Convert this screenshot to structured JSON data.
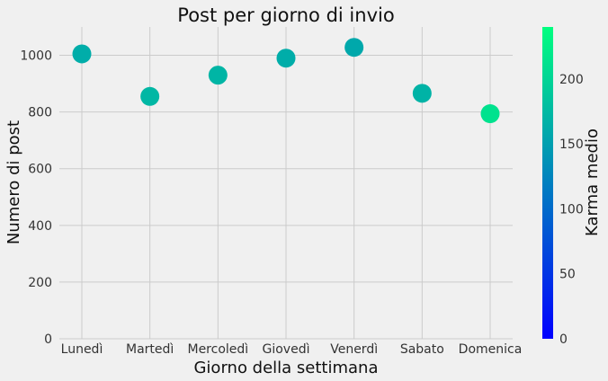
{
  "chart_data": {
    "type": "scatter",
    "title": "Post per giorno di invio",
    "xlabel": "Giorno della settimana",
    "ylabel": "Numero di post",
    "categories": [
      "Lunedì",
      "Martedì",
      "Mercoledì",
      "Giovedì",
      "Venerdì",
      "Sabato",
      "Domenica"
    ],
    "values": [
      1005,
      855,
      930,
      990,
      1028,
      866,
      794
    ],
    "color_values": [
      163,
      172,
      170,
      163,
      158,
      168,
      213
    ],
    "ylim": [
      0,
      1100
    ],
    "yticks": [
      0,
      200,
      400,
      600,
      800,
      1000
    ],
    "grid": true,
    "colormap": "winter",
    "colorbar": {
      "label": "Karma medio",
      "range": [
        0,
        240
      ],
      "ticks": [
        0,
        50,
        100,
        150,
        200
      ],
      "color_low": "#0000ff",
      "color_high": "#00ff80"
    }
  }
}
